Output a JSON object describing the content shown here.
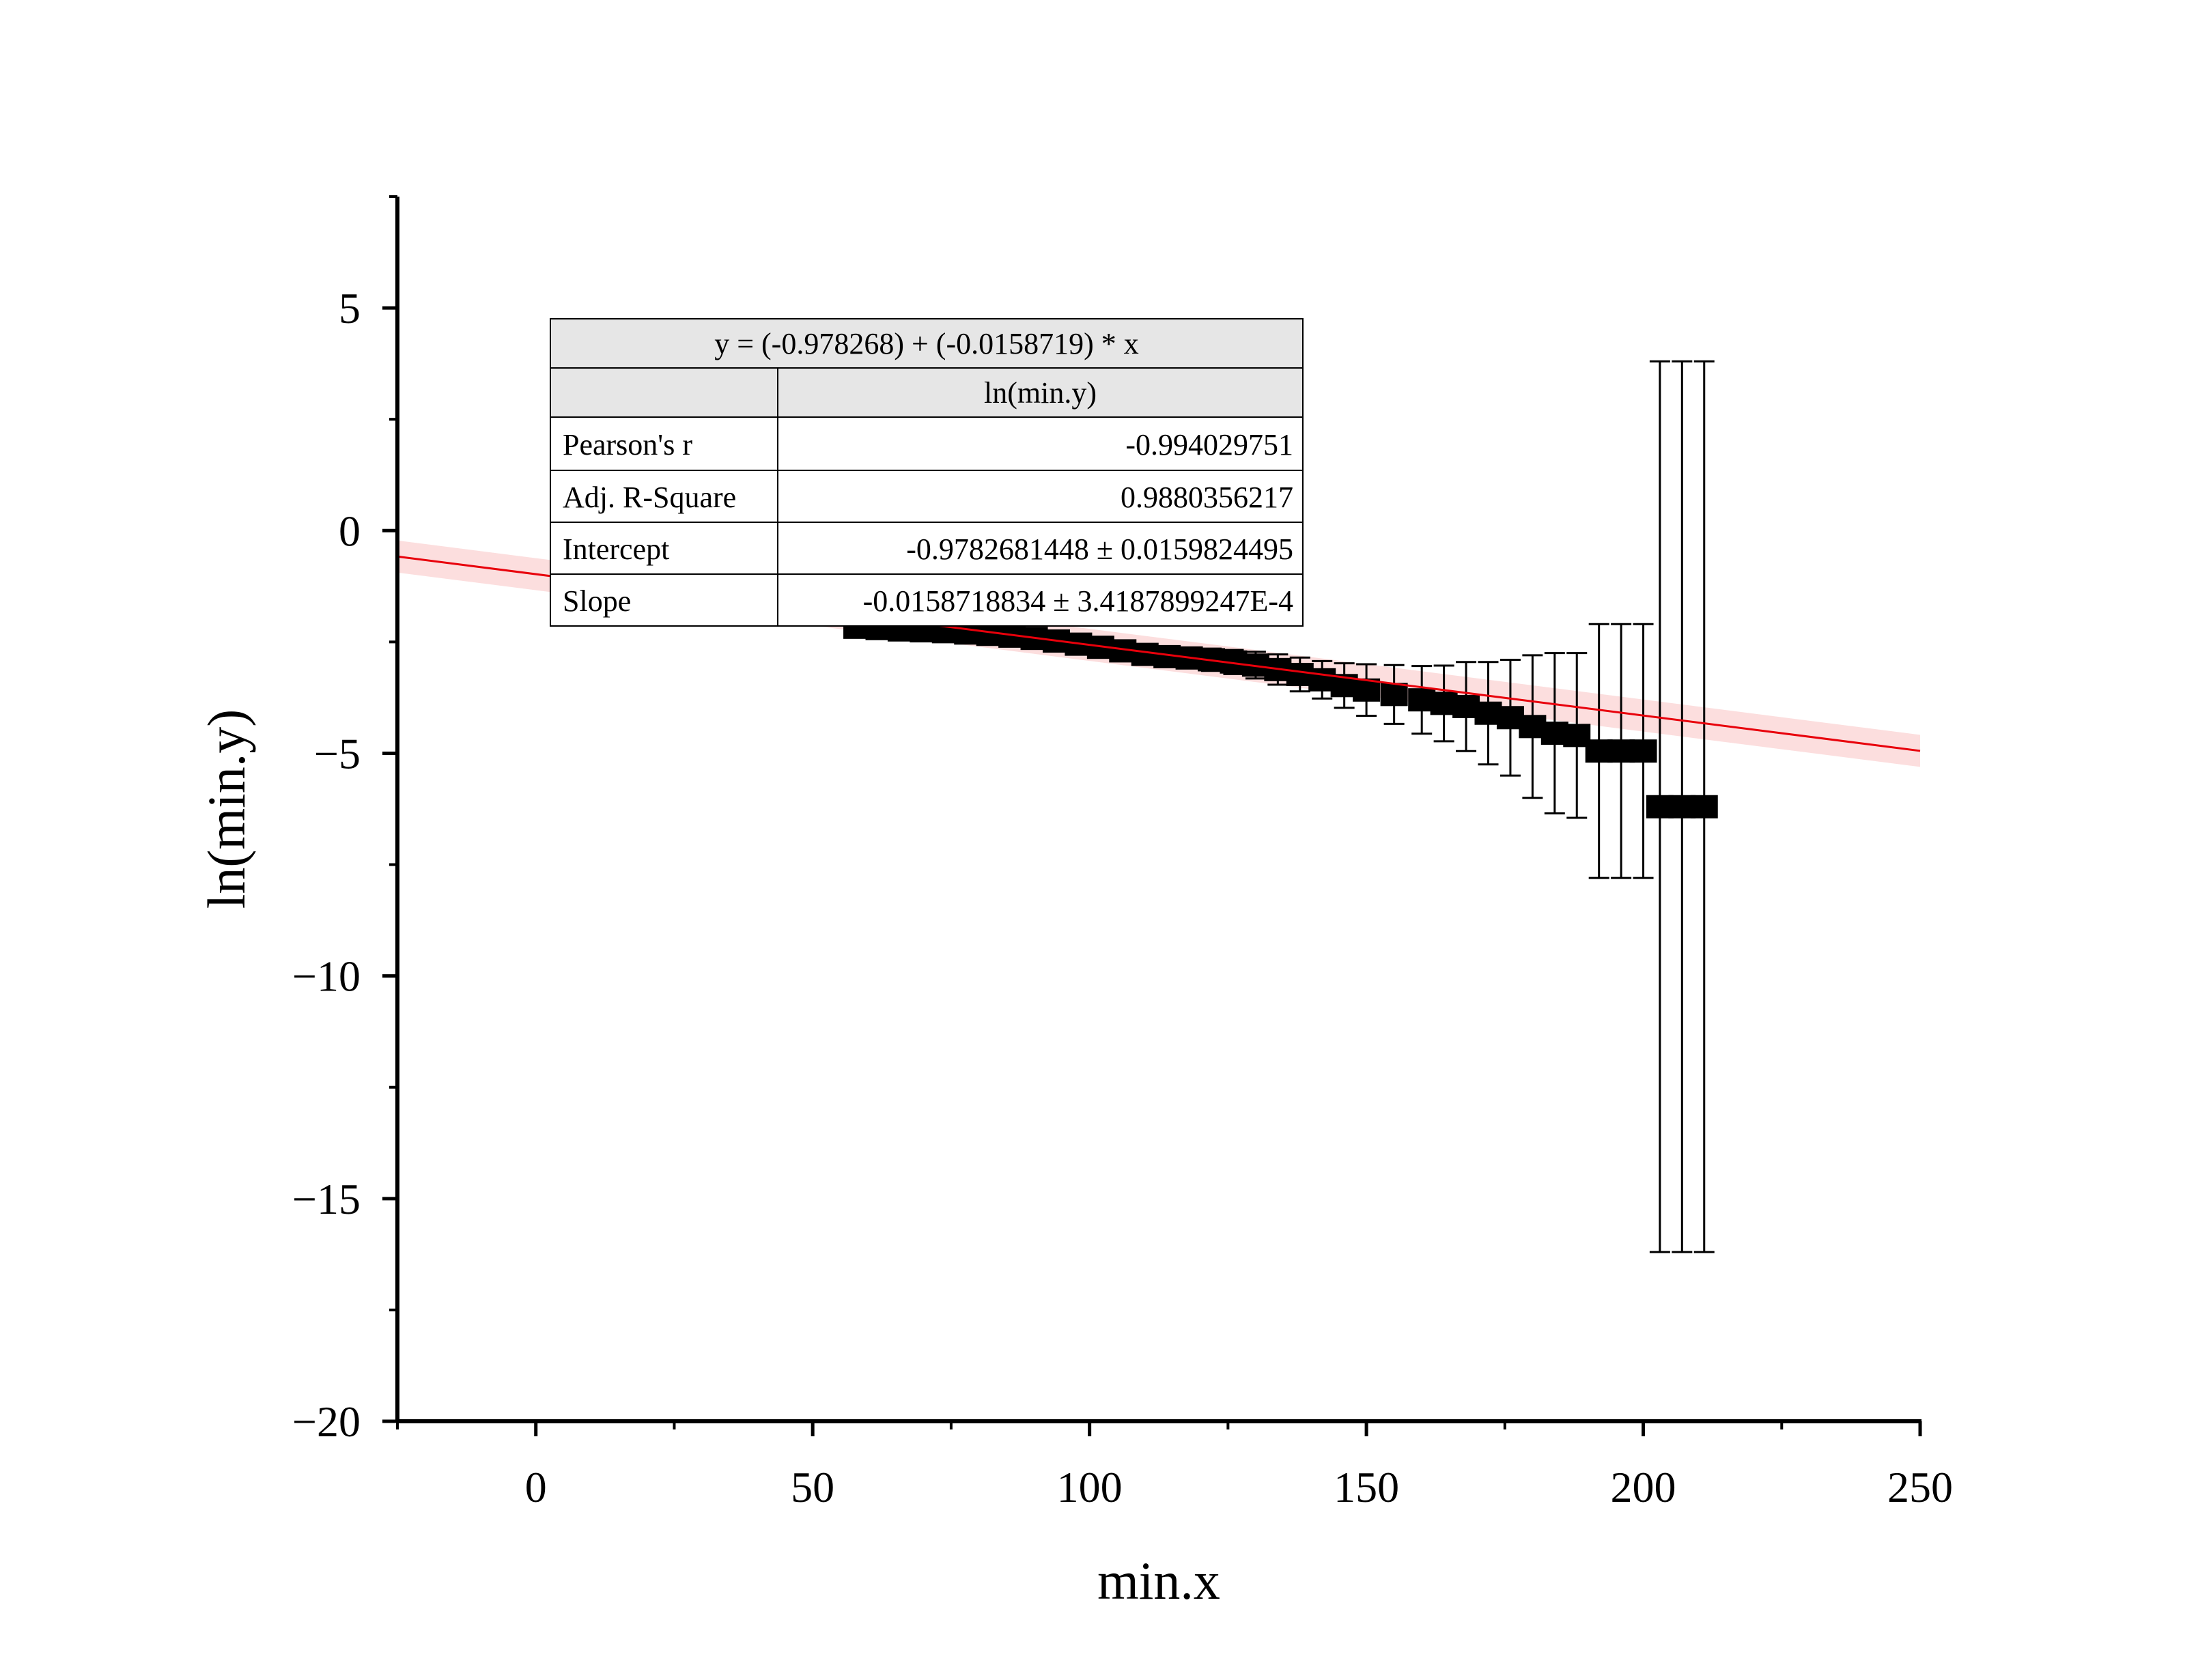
{
  "chart_data": {
    "type": "scatter",
    "xlabel": "min.x",
    "ylabel": "ln(min.y)",
    "xlim": [
      -25,
      250
    ],
    "ylim": [
      -20,
      7.5
    ],
    "x_ticks": [
      0,
      50,
      100,
      150,
      200,
      250
    ],
    "y_ticks": [
      5,
      0,
      -5,
      -10,
      -15,
      -20
    ],
    "x_tick_labels": [
      "0",
      "50",
      "100",
      "150",
      "200",
      "250"
    ],
    "y_tick_labels": [
      "5",
      "0",
      "−5",
      "−10",
      "−15",
      "−20"
    ],
    "grid": false,
    "colors": {
      "points": "#000000",
      "fit_line": "#e8000b",
      "confidence_band": "#fbd6d6",
      "table_header_bg": "#e6e6e6"
    },
    "fit": {
      "intercept": -0.978268,
      "slope": -0.0158719,
      "x_range": [
        -25,
        250
      ],
      "band_halfwidth": [
        0.36,
        0.36
      ]
    },
    "series": [
      {
        "points": [
          {
            "x": 58,
            "y": -2.17,
            "err": 0.12
          },
          {
            "x": 62,
            "y": -2.2,
            "err": 0.12
          },
          {
            "x": 66,
            "y": -2.23,
            "err": 0.12
          },
          {
            "x": 70,
            "y": -2.25,
            "err": 0.12
          },
          {
            "x": 74,
            "y": -2.27,
            "err": 0.13
          },
          {
            "x": 78,
            "y": -2.3,
            "err": 0.13
          },
          {
            "x": 82,
            "y": -2.33,
            "err": 0.14
          },
          {
            "x": 86,
            "y": -2.37,
            "err": 0.14
          },
          {
            "x": 90,
            "y": -2.42,
            "err": 0.15
          },
          {
            "x": 94,
            "y": -2.48,
            "err": 0.16
          },
          {
            "x": 98,
            "y": -2.55,
            "err": 0.17
          },
          {
            "x": 102,
            "y": -2.62,
            "err": 0.18
          },
          {
            "x": 106,
            "y": -2.7,
            "err": 0.2
          },
          {
            "x": 110,
            "y": -2.78,
            "err": 0.21
          },
          {
            "x": 114,
            "y": -2.83,
            "err": 0.22
          },
          {
            "x": 118,
            "y": -2.86,
            "err": 0.23
          },
          {
            "x": 122,
            "y": -2.9,
            "err": 0.25
          },
          {
            "x": 126,
            "y": -2.95,
            "err": 0.27
          },
          {
            "x": 130,
            "y": -3.02,
            "err": 0.3
          },
          {
            "x": 134,
            "y": -3.12,
            "err": 0.34
          },
          {
            "x": 138,
            "y": -3.23,
            "err": 0.38
          },
          {
            "x": 142,
            "y": -3.35,
            "err": 0.42
          },
          {
            "x": 146,
            "y": -3.48,
            "err": 0.5
          },
          {
            "x": 150,
            "y": -3.58,
            "err": 0.58
          },
          {
            "x": 155,
            "y": -3.68,
            "err": 0.66
          },
          {
            "x": 160,
            "y": -3.8,
            "err": 0.76
          },
          {
            "x": 164,
            "y": -3.88,
            "err": 0.85
          },
          {
            "x": 168,
            "y": -3.95,
            "err": 1.0
          },
          {
            "x": 172,
            "y": -4.1,
            "err": 1.15
          },
          {
            "x": 176,
            "y": -4.2,
            "err": 1.3
          },
          {
            "x": 180,
            "y": -4.4,
            "err": 1.6
          },
          {
            "x": 184,
            "y": -4.55,
            "err": 1.8
          },
          {
            "x": 188,
            "y": -4.6,
            "err": 1.85
          },
          {
            "x": 192,
            "y": -4.95,
            "err": 2.85
          },
          {
            "x": 196,
            "y": -4.95,
            "err": 2.85
          },
          {
            "x": 200,
            "y": -4.95,
            "err": 2.85
          },
          {
            "x": 203,
            "y": -6.2,
            "err": 10.0
          },
          {
            "x": 207,
            "y": -6.2,
            "err": 10.0
          },
          {
            "x": 211,
            "y": -6.2,
            "err": 10.0
          }
        ]
      }
    ]
  },
  "stats_table": {
    "equation": "y = (-0.978268) + (-0.0158719) * x",
    "column_header": "ln(min.y)",
    "rows": [
      {
        "label": "Pearson's r",
        "value": "-0.994029751"
      },
      {
        "label": "Adj. R-Square",
        "value": "0.9880356217"
      },
      {
        "label": "Intercept",
        "value": "-0.9782681448 ± 0.0159824495"
      },
      {
        "label": "Slope",
        "value": "-0.0158718834 ± 3.4187899247E-4"
      }
    ]
  }
}
